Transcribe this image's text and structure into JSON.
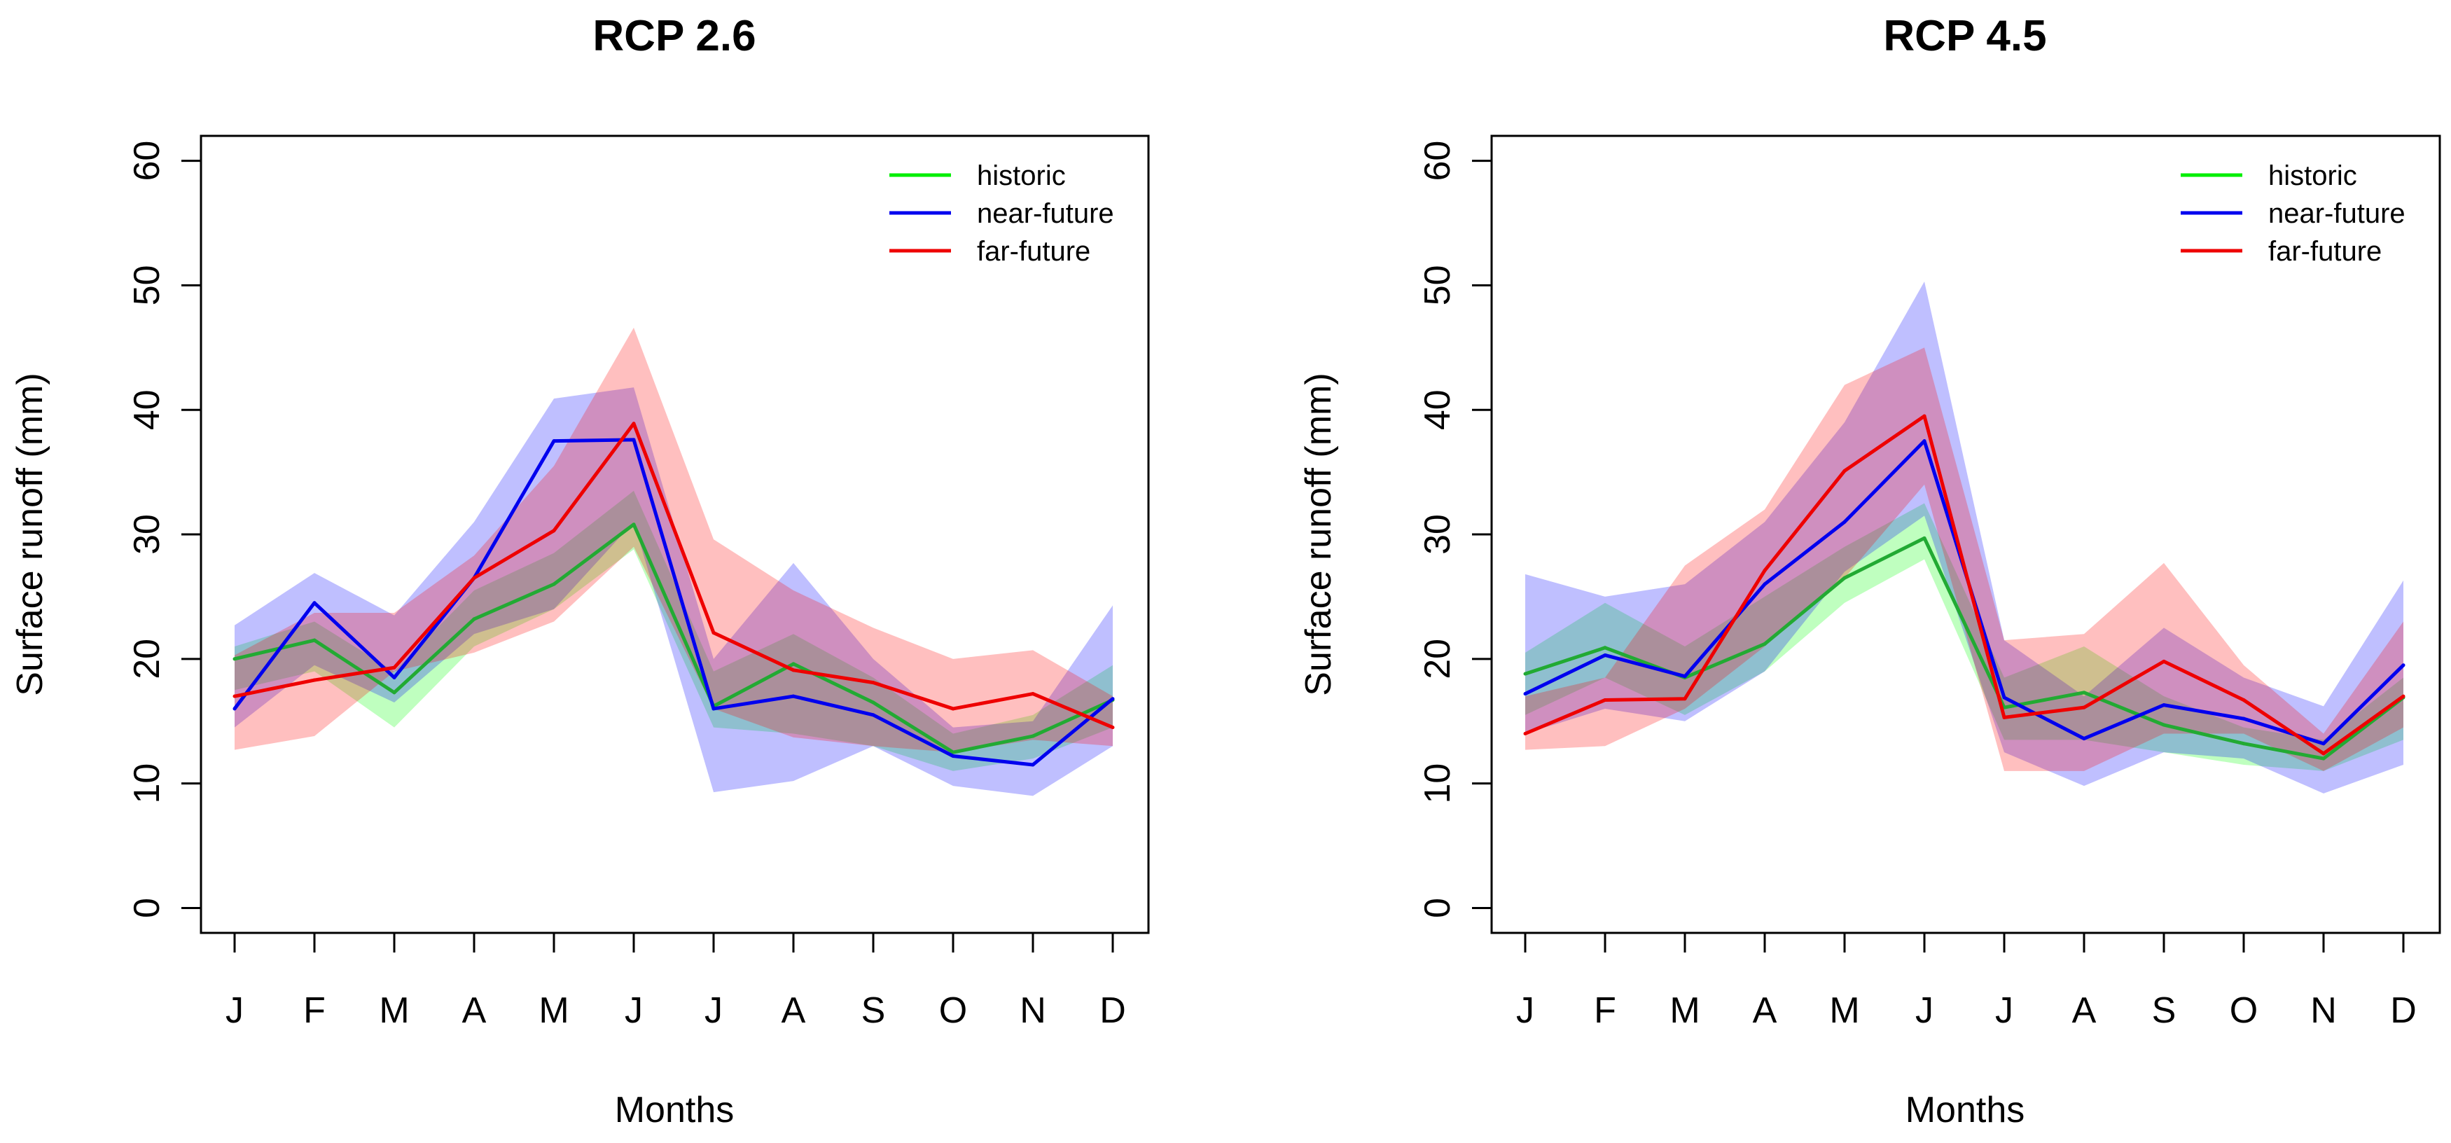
{
  "chart_data": [
    {
      "type": "line",
      "title": "RCP 2.6",
      "xlabel": "Months",
      "ylabel": "Surface runoff (mm)",
      "categories": [
        "J",
        "F",
        "M",
        "A",
        "M",
        "J",
        "J",
        "A",
        "S",
        "O",
        "N",
        "D"
      ],
      "ylim": [
        -2,
        62
      ],
      "yticks": [
        "0",
        "10",
        "20",
        "30",
        "40",
        "50",
        "60"
      ],
      "legend_position": "top-right",
      "series": [
        {
          "name": "historic",
          "color": "#00ee00",
          "line_color": "#22aa33",
          "band_color": "#00ff00",
          "values": [
            20.0,
            21.5,
            17.3,
            23.2,
            26.0,
            30.8,
            16.2,
            19.6,
            16.5,
            12.5,
            13.8,
            16.7
          ],
          "lower": [
            17.5,
            19.0,
            14.5,
            21.0,
            24.0,
            28.8,
            14.5,
            14.0,
            13.0,
            11.0,
            12.0,
            14.5
          ],
          "upper": [
            21.0,
            23.0,
            19.0,
            25.5,
            28.5,
            33.5,
            19.0,
            22.0,
            18.5,
            14.0,
            15.5,
            19.5
          ]
        },
        {
          "name": "near-future",
          "color": "#0000ee",
          "line_color": "#0000ee",
          "band_color": "#0000ff",
          "values": [
            16.0,
            24.5,
            18.5,
            26.5,
            37.5,
            37.6,
            16.0,
            17.0,
            15.5,
            12.2,
            11.5,
            16.8
          ],
          "lower": [
            14.5,
            19.5,
            16.5,
            22.0,
            24.0,
            31.0,
            9.3,
            10.2,
            13.0,
            9.8,
            9.0,
            13.0
          ],
          "upper": [
            22.7,
            26.9,
            23.5,
            31.0,
            40.9,
            41.8,
            20.0,
            27.7,
            20.0,
            14.5,
            15.0,
            24.3
          ]
        },
        {
          "name": "far-future",
          "color": "#ee0000",
          "line_color": "#ee0000",
          "band_color": "#ff0000",
          "values": [
            17.0,
            18.3,
            19.3,
            26.5,
            30.3,
            38.9,
            22.1,
            19.1,
            18.1,
            16.0,
            17.2,
            14.5
          ],
          "lower": [
            12.7,
            13.8,
            19.0,
            20.5,
            23.0,
            29.0,
            16.0,
            13.7,
            13.0,
            12.5,
            13.5,
            13.0
          ],
          "upper": [
            20.3,
            23.7,
            23.7,
            28.3,
            35.5,
            46.6,
            29.6,
            25.5,
            22.5,
            20.0,
            20.7,
            17.0
          ]
        }
      ]
    },
    {
      "type": "line",
      "title": "RCP 4.5",
      "xlabel": "Months",
      "ylabel": "Surface runoff (mm)",
      "categories": [
        "J",
        "F",
        "M",
        "A",
        "M",
        "J",
        "J",
        "A",
        "S",
        "O",
        "N",
        "D"
      ],
      "ylim": [
        -2,
        62
      ],
      "yticks": [
        "0",
        "10",
        "20",
        "30",
        "40",
        "50",
        "60"
      ],
      "legend_position": "top-right",
      "series": [
        {
          "name": "historic",
          "color": "#00ee00",
          "line_color": "#22aa33",
          "band_color": "#00ff00",
          "values": [
            18.8,
            20.9,
            18.5,
            21.2,
            26.5,
            29.7,
            16.1,
            17.3,
            14.7,
            13.2,
            12.0,
            16.9
          ],
          "lower": [
            15.5,
            18.5,
            15.5,
            19.0,
            24.5,
            28.0,
            13.5,
            13.5,
            12.5,
            11.5,
            11.0,
            13.5
          ],
          "upper": [
            20.5,
            24.5,
            21.0,
            25.0,
            29.0,
            32.5,
            18.5,
            21.0,
            17.0,
            14.5,
            13.5,
            18.5
          ]
        },
        {
          "name": "near-future",
          "color": "#0000ee",
          "line_color": "#0000ee",
          "band_color": "#0000ff",
          "values": [
            17.2,
            20.3,
            18.6,
            26.0,
            31.0,
            37.5,
            16.9,
            13.6,
            16.3,
            15.2,
            13.2,
            19.5
          ],
          "lower": [
            14.0,
            16.0,
            15.0,
            19.0,
            27.0,
            31.5,
            12.5,
            9.8,
            12.5,
            12.0,
            9.2,
            11.5
          ],
          "upper": [
            26.8,
            25.0,
            26.0,
            31.0,
            39.0,
            50.3,
            21.5,
            17.0,
            22.5,
            18.5,
            16.2,
            26.3
          ]
        },
        {
          "name": "far-future",
          "color": "#ee0000",
          "line_color": "#ee0000",
          "band_color": "#ff0000",
          "values": [
            14.0,
            16.7,
            16.8,
            27.1,
            35.1,
            39.5,
            15.3,
            16.1,
            19.8,
            16.7,
            12.4,
            17.0
          ],
          "lower": [
            12.7,
            13.0,
            16.0,
            21.0,
            26.5,
            34.0,
            11.0,
            11.0,
            14.0,
            14.0,
            11.0,
            14.5
          ],
          "upper": [
            17.0,
            18.5,
            27.5,
            32.0,
            42.0,
            45.0,
            21.5,
            22.0,
            27.7,
            19.5,
            14.0,
            23.0
          ]
        }
      ]
    }
  ]
}
